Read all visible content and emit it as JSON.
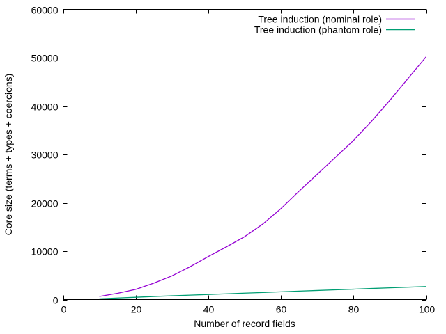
{
  "chart_data": {
    "type": "line",
    "title": "",
    "xlabel": "Number of record fields",
    "ylabel": "Core size (terms + types + coercions)",
    "xlim": [
      0,
      100
    ],
    "ylim": [
      0,
      60000
    ],
    "xticks": [
      0,
      20,
      40,
      60,
      80,
      100
    ],
    "yticks": [
      0,
      10000,
      20000,
      30000,
      40000,
      50000,
      60000
    ],
    "grid": false,
    "legend_position": "top-right-inside",
    "x": [
      10,
      15,
      20,
      25,
      30,
      35,
      40,
      45,
      50,
      55,
      60,
      65,
      70,
      75,
      80,
      85,
      90,
      95,
      100
    ],
    "series": [
      {
        "name": "Tree induction (nominal role)",
        "color": "#9400d3",
        "values": [
          650,
          1300,
          2100,
          3400,
          4900,
          6800,
          8900,
          10900,
          13000,
          15600,
          18800,
          22400,
          25900,
          29400,
          32900,
          36900,
          41200,
          45700,
          50200
        ]
      },
      {
        "name": "Tree induction (phantom role)",
        "color": "#009e73",
        "values": [
          150,
          320,
          480,
          640,
          780,
          920,
          1050,
          1190,
          1330,
          1460,
          1600,
          1740,
          1880,
          2010,
          2150,
          2290,
          2430,
          2560,
          2700
        ]
      }
    ]
  },
  "colors": {
    "background": "#ffffff",
    "axis": "#000000",
    "text": "#000000"
  }
}
